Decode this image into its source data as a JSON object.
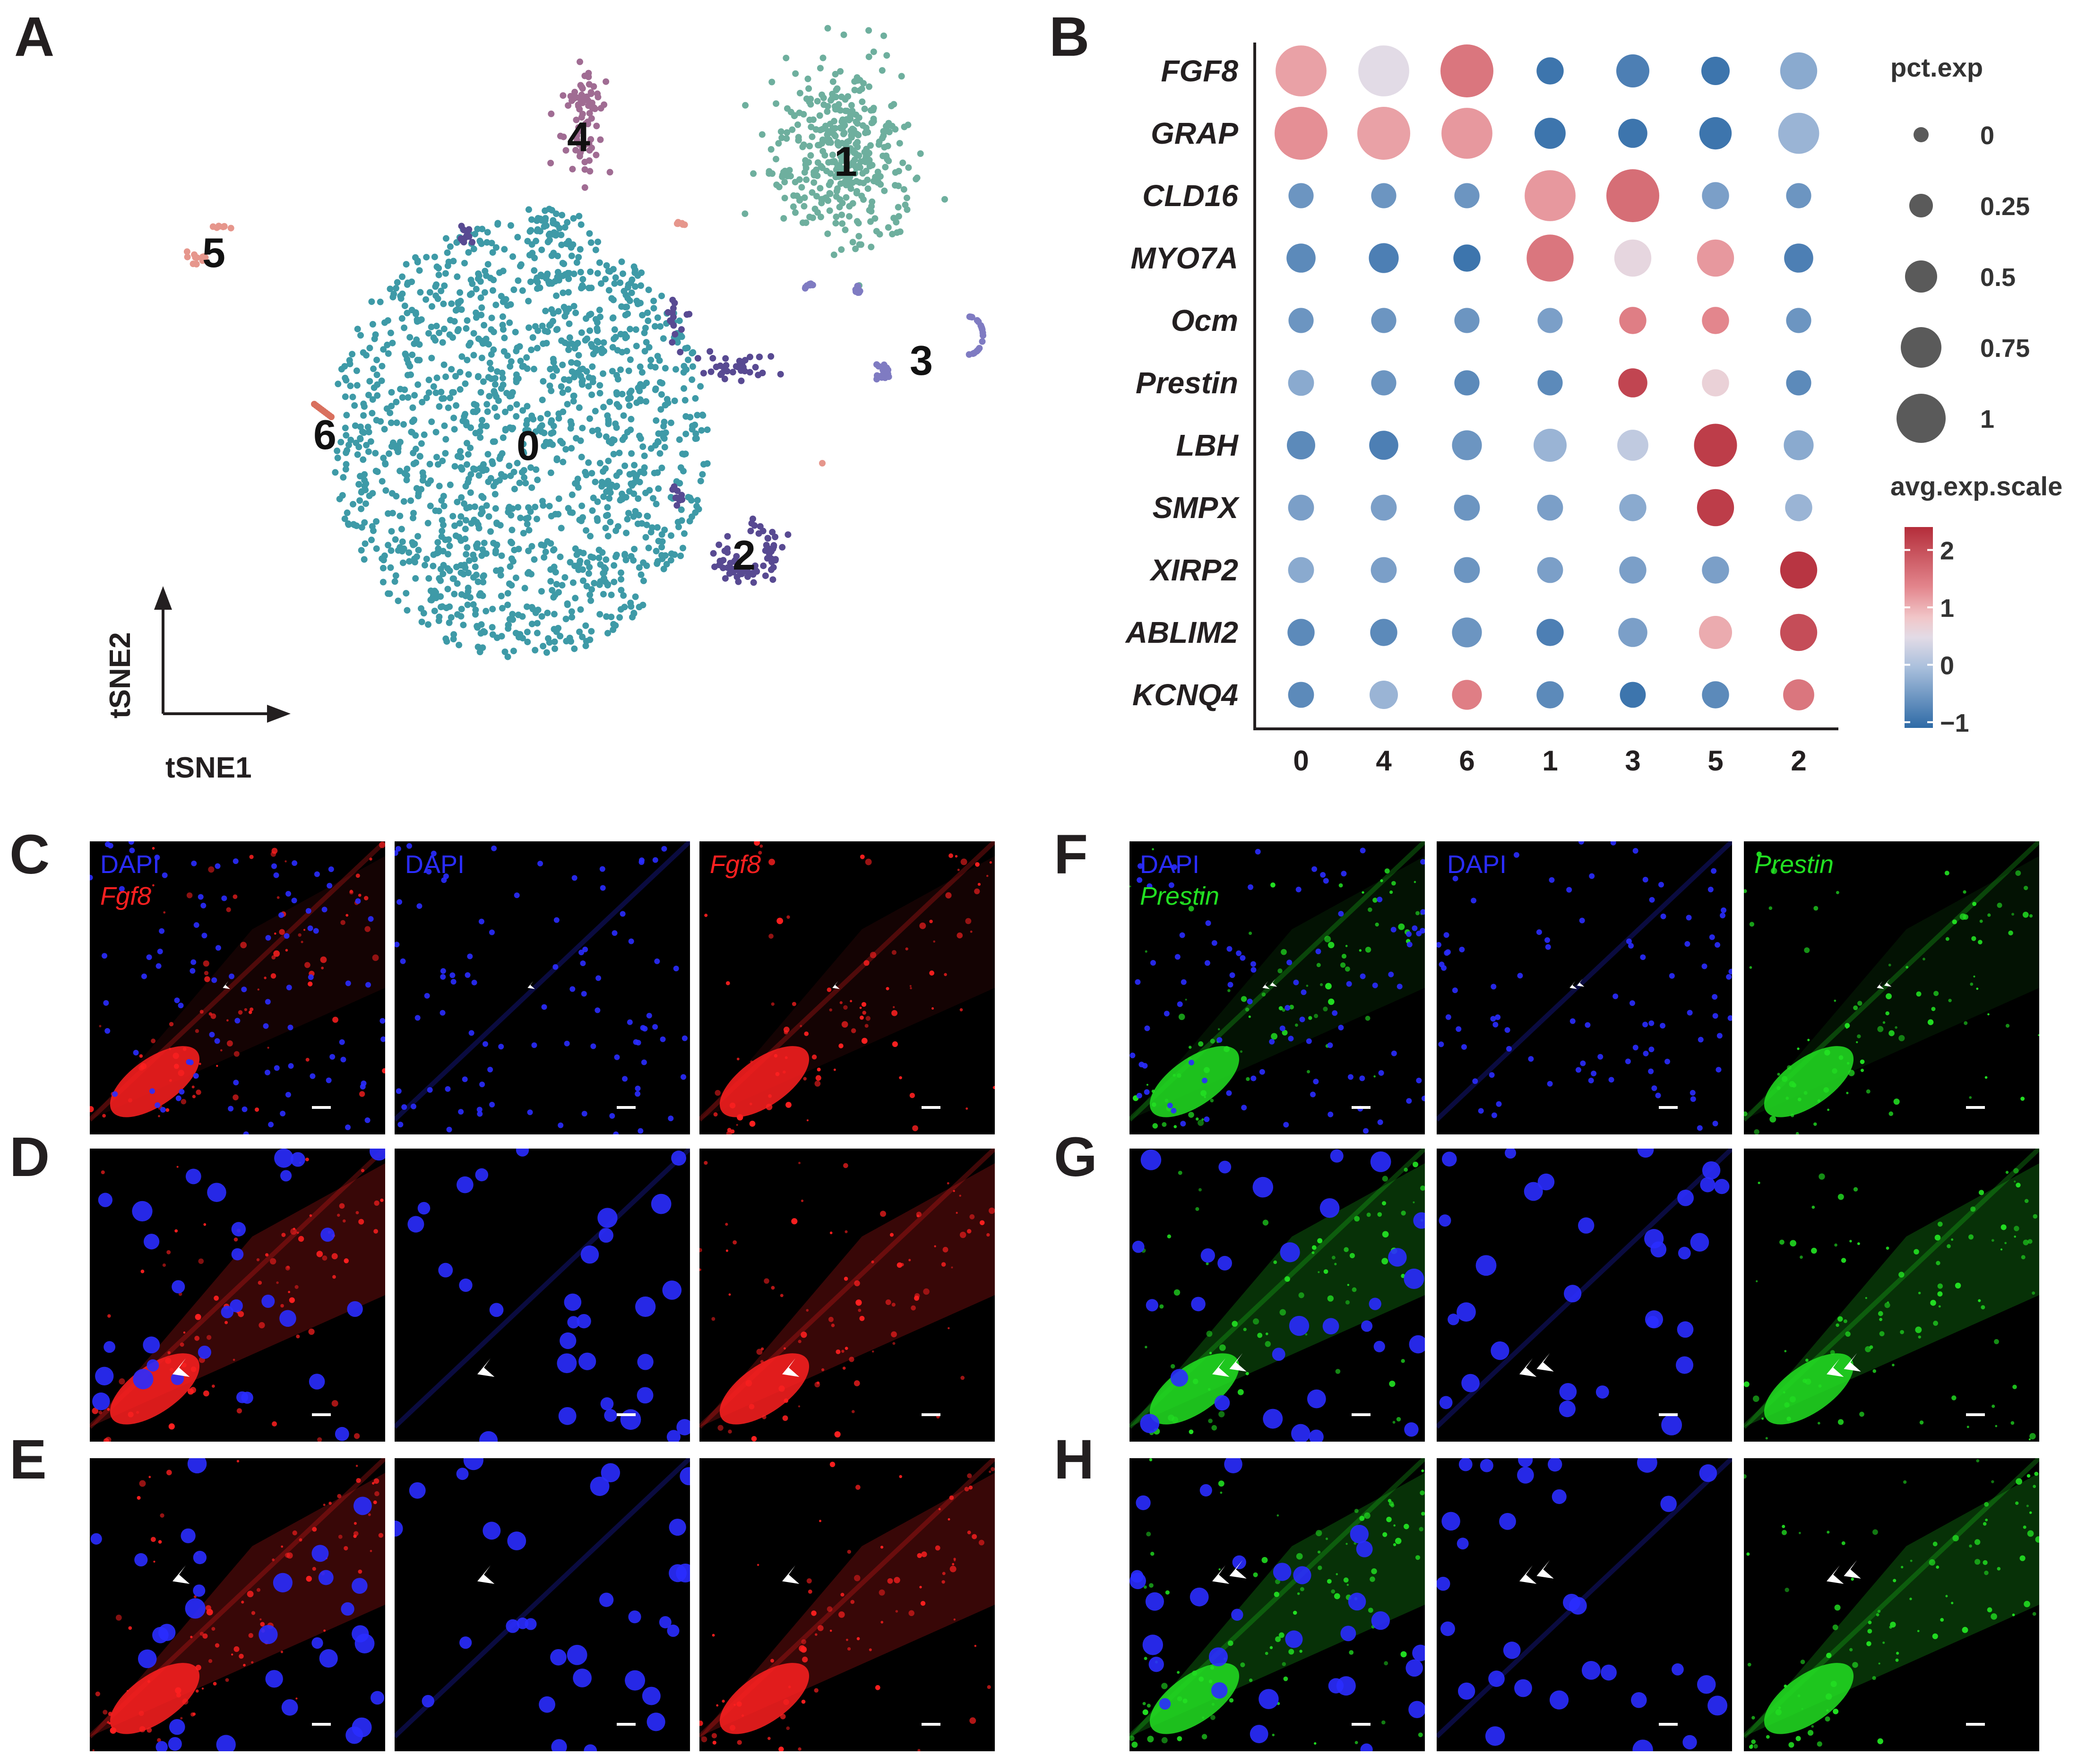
{
  "figure_letters": {
    "A": "A",
    "B": "B",
    "C": "C",
    "D": "D",
    "E": "E",
    "F": "F",
    "G": "G",
    "H": "H"
  },
  "colors": {
    "c0": "#3e9aa7",
    "c1": "#6eaf9e",
    "c2": "#584a92",
    "c3": "#7f7bc2",
    "c4": "#a06c93",
    "c5": "#e6968c",
    "c6": "#d9705e",
    "dapi": "#2a2cff",
    "fgf8": "#ff2020",
    "prestin": "#22e022"
  },
  "tsne": {
    "xaxis_label": "tSNE1",
    "yaxis_label": "tSNE2",
    "cluster_labels": [
      "0",
      "1",
      "2",
      "3",
      "4",
      "5",
      "6"
    ]
  },
  "chart_data": {
    "type": "scatter",
    "title": "",
    "xlabel": "",
    "ylabel": "",
    "categories": [
      "0",
      "4",
      "6",
      "1",
      "3",
      "5",
      "2"
    ],
    "genes": [
      "FGF8",
      "GRAP",
      "CLD16",
      "MYO7A",
      "Ocm",
      "Prestin",
      "LBH",
      "SMPX",
      "XIRP2",
      "ABLIM2",
      "KCNQ4"
    ],
    "avg_exp_scale": [
      [
        1.0,
        0.2,
        1.5,
        -1.0,
        -0.9,
        -1.0,
        -0.5
      ],
      [
        1.2,
        1.0,
        1.1,
        -1.0,
        -1.0,
        -1.0,
        -0.4
      ],
      [
        -0.7,
        -0.7,
        -0.7,
        1.1,
        1.6,
        -0.6,
        -0.7
      ],
      [
        -0.8,
        -0.9,
        -1.0,
        1.5,
        0.3,
        1.1,
        -0.9
      ],
      [
        -0.7,
        -0.7,
        -0.7,
        -0.6,
        1.4,
        1.3,
        -0.7
      ],
      [
        -0.5,
        -0.7,
        -0.8,
        -0.8,
        2.1,
        0.4,
        -0.8
      ],
      [
        -0.8,
        -0.9,
        -0.7,
        -0.4,
        -0.1,
        2.2,
        -0.5
      ],
      [
        -0.6,
        -0.6,
        -0.7,
        -0.6,
        -0.5,
        2.2,
        -0.4
      ],
      [
        -0.5,
        -0.6,
        -0.7,
        -0.6,
        -0.6,
        -0.6,
        2.3
      ],
      [
        -0.8,
        -0.8,
        -0.7,
        -0.9,
        -0.6,
        0.9,
        2.0
      ],
      [
        -0.8,
        -0.4,
        1.4,
        -0.8,
        -1.0,
        -0.8,
        1.5
      ]
    ],
    "pct_exp": [
      [
        0.95,
        0.95,
        1.0,
        0.35,
        0.5,
        0.38,
        0.6
      ],
      [
        1.0,
        1.0,
        0.95,
        0.45,
        0.4,
        0.48,
        0.7
      ],
      [
        0.3,
        0.3,
        0.3,
        0.95,
        1.0,
        0.35,
        0.3
      ],
      [
        0.4,
        0.42,
        0.35,
        0.85,
        0.6,
        0.6,
        0.4
      ],
      [
        0.3,
        0.3,
        0.3,
        0.3,
        0.35,
        0.35,
        0.3
      ],
      [
        0.32,
        0.3,
        0.3,
        0.3,
        0.4,
        0.35,
        0.3
      ],
      [
        0.38,
        0.4,
        0.42,
        0.5,
        0.45,
        0.75,
        0.42
      ],
      [
        0.32,
        0.32,
        0.32,
        0.32,
        0.35,
        0.6,
        0.35
      ],
      [
        0.32,
        0.32,
        0.32,
        0.32,
        0.35,
        0.35,
        0.6
      ],
      [
        0.35,
        0.35,
        0.42,
        0.35,
        0.4,
        0.5,
        0.6
      ],
      [
        0.32,
        0.38,
        0.42,
        0.35,
        0.32,
        0.35,
        0.45
      ]
    ],
    "size_legend_title": "pct.exp",
    "size_legend": [
      "0",
      "0.25",
      "0.5",
      "0.75",
      "1"
    ],
    "color_legend_title": "avg.exp.scale",
    "color_legend": [
      "2",
      "1",
      "0",
      "−1"
    ],
    "color_range": [
      -1.1,
      2.4
    ]
  },
  "micro_labels": {
    "dapi": "DAPI",
    "fgf8": "Fgf8",
    "prestin": "Prestin"
  }
}
